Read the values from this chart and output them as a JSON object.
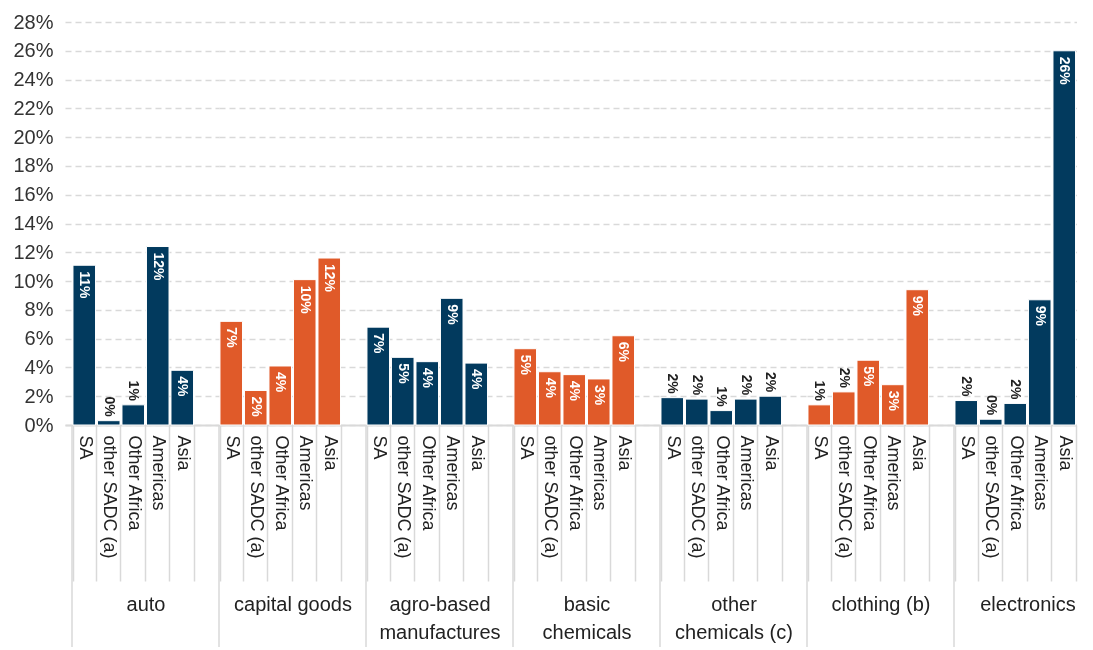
{
  "chart_data": [
    {
      "type": "bar",
      "xlabel": "auto",
      "categories": [
        "SA",
        "other SADC (a)",
        "Other Africa",
        "Americas",
        "Asia"
      ],
      "values": [
        11.1,
        0.3,
        1.4,
        12.4,
        3.8
      ],
      "color": "#023a5e",
      "value_labels": [
        "11%",
        "0%",
        "1%",
        "12%",
        "4%"
      ],
      "ylim": [
        0,
        28
      ],
      "yticks": [
        {
          "value": 0,
          "label": "0%"
        },
        {
          "value": 2,
          "label": "2%"
        },
        {
          "value": 4,
          "label": "4%"
        },
        {
          "value": 6,
          "label": "6%"
        },
        {
          "value": 8,
          "label": "8%"
        },
        {
          "value": 10,
          "label": "10%"
        },
        {
          "value": 12,
          "label": "12%"
        },
        {
          "value": 14,
          "label": "14%"
        },
        {
          "value": 16,
          "label": "16%"
        },
        {
          "value": 18,
          "label": "18%"
        },
        {
          "value": 20,
          "label": "20%"
        },
        {
          "value": 22,
          "label": "22%"
        },
        {
          "value": 24,
          "label": "24%"
        },
        {
          "value": 26,
          "label": "26%"
        },
        {
          "value": 28,
          "label": "28%"
        }
      ],
      "grid": "y"
    },
    {
      "type": "bar",
      "xlabel": "capital goods",
      "categories": [
        "SA",
        "other SADC (a)",
        "Other Africa",
        "Americas",
        "Asia"
      ],
      "values": [
        7.2,
        2.4,
        4.1,
        10.1,
        11.6
      ],
      "color": "#e05a29",
      "value_labels": [
        "7%",
        "2%",
        "4%",
        "10%",
        "12%"
      ],
      "ylim": [
        0,
        28
      ],
      "yticks": [
        0,
        2,
        4,
        6,
        8,
        10,
        12,
        14,
        16,
        18,
        20,
        22,
        24,
        26,
        28
      ],
      "grid": "y",
      "tick_labels": "x"
    },
    {
      "type": "bar",
      "xlabel": "agro-based manufactures",
      "categories": [
        "SA",
        "other SADC (a)",
        "Other Africa",
        "Americas",
        "Asia"
      ],
      "values": [
        6.8,
        4.7,
        4.4,
        8.8,
        4.3
      ],
      "color": "#023a5e",
      "value_labels": [
        "7%",
        "5%",
        "4%",
        "9%",
        "4%"
      ],
      "ylim": [
        0,
        28
      ],
      "yticks": [
        0,
        2,
        4,
        6,
        8,
        10,
        12,
        14,
        16,
        18,
        20,
        22,
        24,
        26,
        28
      ],
      "grid": "y",
      "tick_labels": "x"
    },
    {
      "type": "bar",
      "xlabel": "basic chemicals",
      "categories": [
        "SA",
        "other SADC (a)",
        "Other Africa",
        "Americas",
        "Asia"
      ],
      "values": [
        5.3,
        3.7,
        3.5,
        3.2,
        6.2
      ],
      "color": "#e05a29",
      "value_labels": [
        "5%",
        "4%",
        "4%",
        "3%",
        "6%"
      ],
      "ylim": [
        0,
        28
      ],
      "yticks": [
        0,
        2,
        4,
        6,
        8,
        10,
        12,
        14,
        16,
        18,
        20,
        22,
        24,
        26,
        28
      ],
      "grid": "y",
      "tick_labels": "x"
    },
    {
      "type": "bar",
      "xlabel": "other chemicals (c)",
      "categories": [
        "SA",
        "other SADC (a)",
        "Other Africa",
        "Americas",
        "Asia"
      ],
      "values": [
        1.9,
        1.8,
        1.0,
        1.8,
        2.0
      ],
      "color": "#023a5e",
      "value_labels": [
        "2%",
        "2%",
        "1%",
        "2%",
        "2%"
      ],
      "ylim": [
        0,
        28
      ],
      "yticks": [
        0,
        2,
        4,
        6,
        8,
        10,
        12,
        14,
        16,
        18,
        20,
        22,
        24,
        26,
        28
      ],
      "grid": "y",
      "tick_labels": "x"
    },
    {
      "type": "bar",
      "xlabel": "clothing (b)",
      "categories": [
        "SA",
        "other SADC (a)",
        "Other Africa",
        "Americas",
        "Asia"
      ],
      "values": [
        1.4,
        2.3,
        4.5,
        2.8,
        9.4
      ],
      "color": "#e05a29",
      "value_labels": [
        "1%",
        "2%",
        "5%",
        "3%",
        "9%"
      ],
      "ylim": [
        0,
        28
      ],
      "yticks": [
        0,
        2,
        4,
        6,
        8,
        10,
        12,
        14,
        16,
        18,
        20,
        22,
        24,
        26,
        28
      ],
      "grid": "y",
      "tick_labels": "x"
    },
    {
      "type": "bar",
      "xlabel": "electronics",
      "categories": [
        "SA",
        "other SADC (a)",
        "Other Africa",
        "Americas",
        "Asia"
      ],
      "values": [
        1.7,
        0.4,
        1.5,
        8.7,
        26.0
      ],
      "color": "#023a5e",
      "value_labels": [
        "2%",
        "0%",
        "2%",
        "9%",
        "26%"
      ],
      "ylim": [
        0,
        28
      ],
      "yticks": [
        0,
        2,
        4,
        6,
        8,
        10,
        12,
        14,
        16,
        18,
        20,
        22,
        24,
        26,
        28
      ],
      "grid": "y",
      "tick_labels": "x"
    }
  ]
}
